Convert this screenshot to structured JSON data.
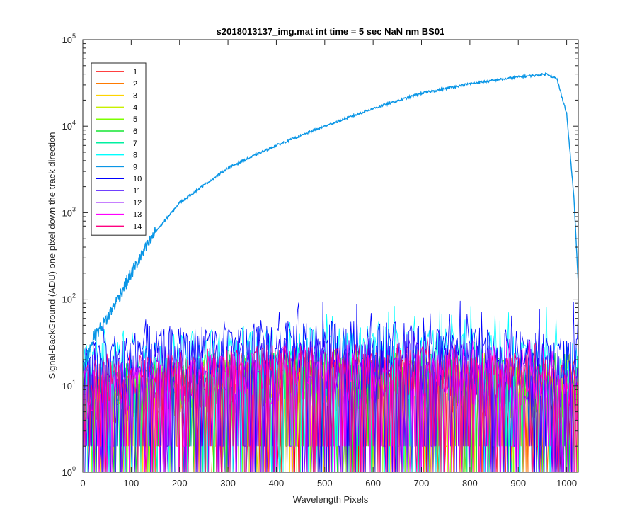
{
  "chart_data": {
    "type": "line",
    "title": "s2018013137_img.mat int time = 5 sec  NaN nm BS01",
    "xlabel": "Wavelength Pixels",
    "ylabel": "Signal-BackGround (ADU) one pixel down the track direction",
    "xlim": [
      0,
      1024
    ],
    "ylim": [
      1,
      100000
    ],
    "yscale": "log",
    "grid": false,
    "legend_position": "top-left",
    "x_ticks": [
      "0",
      "100",
      "200",
      "300",
      "400",
      "500",
      "600",
      "700",
      "800",
      "900",
      "1000"
    ],
    "y_ticks": [
      {
        "base": "10",
        "exp": "0"
      },
      {
        "base": "10",
        "exp": "1"
      },
      {
        "base": "10",
        "exp": "2"
      },
      {
        "base": "10",
        "exp": "3"
      },
      {
        "base": "10",
        "exp": "4"
      },
      {
        "base": "10",
        "exp": "5"
      }
    ],
    "series": [
      {
        "name": "1",
        "color": "#ff0000",
        "typical": 8,
        "peak": 20
      },
      {
        "name": "2",
        "color": "#ff7a00",
        "typical": 8,
        "peak": 22
      },
      {
        "name": "3",
        "color": "#ffd400",
        "typical": 8,
        "peak": 22
      },
      {
        "name": "4",
        "color": "#c8f000",
        "typical": 9,
        "peak": 25
      },
      {
        "name": "5",
        "color": "#7cff00",
        "typical": 10,
        "peak": 30
      },
      {
        "name": "6",
        "color": "#14e632",
        "typical": 10,
        "peak": 30
      },
      {
        "name": "7",
        "color": "#00f0a0",
        "typical": 11,
        "peak": 35
      },
      {
        "name": "8",
        "color": "#00ffff",
        "typical": 20,
        "peak": 85
      },
      {
        "name": "9",
        "color": "#0a96e6",
        "main": true,
        "points": [
          [
            0,
            15
          ],
          [
            20,
            35
          ],
          [
            50,
            60
          ],
          [
            100,
            200
          ],
          [
            150,
            600
          ],
          [
            200,
            1300
          ],
          [
            300,
            3300
          ],
          [
            400,
            6000
          ],
          [
            500,
            10000
          ],
          [
            600,
            16000
          ],
          [
            700,
            24000
          ],
          [
            800,
            31000
          ],
          [
            900,
            37000
          ],
          [
            960,
            40000
          ],
          [
            980,
            35000
          ],
          [
            1000,
            14000
          ],
          [
            1015,
            1500
          ],
          [
            1024,
            150
          ]
        ]
      },
      {
        "name": "10",
        "color": "#0000ff",
        "typical": 22,
        "peak": 100
      },
      {
        "name": "11",
        "color": "#4000ff",
        "typical": 14,
        "peak": 45
      },
      {
        "name": "12",
        "color": "#8c00ff",
        "typical": 10,
        "peak": 35
      },
      {
        "name": "13",
        "color": "#ff00ff",
        "typical": 10,
        "peak": 35
      },
      {
        "name": "14",
        "color": "#ff0080",
        "typical": 12,
        "peak": 40
      }
    ]
  }
}
